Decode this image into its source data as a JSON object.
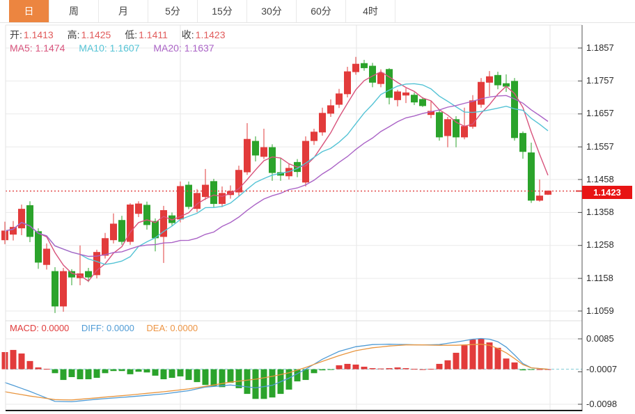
{
  "toolbar": {
    "tabs": [
      {
        "label": "日",
        "active": true
      },
      {
        "label": "周",
        "active": false
      },
      {
        "label": "月",
        "active": false
      },
      {
        "label": "5分",
        "active": false
      },
      {
        "label": "15分",
        "active": false
      },
      {
        "label": "30分",
        "active": false
      },
      {
        "label": "60分",
        "active": false
      },
      {
        "label": "4时",
        "active": false
      }
    ]
  },
  "legend": {
    "ohlc": [
      {
        "label": "开:",
        "value": "1.1413"
      },
      {
        "label": "高:",
        "value": "1.1425"
      },
      {
        "label": "低:",
        "value": "1.1411"
      },
      {
        "label": "收:",
        "value": "1.1423"
      }
    ],
    "ma": [
      {
        "label": "MA5:",
        "value": "1.1474"
      },
      {
        "label": "MA10:",
        "value": "1.1607"
      },
      {
        "label": "MA20:",
        "value": "1.1637"
      }
    ]
  },
  "macd_legend": [
    {
      "label": "MACD:",
      "value": "0.0000"
    },
    {
      "label": "DIFF:",
      "value": "0.0000"
    },
    {
      "label": "DEA:",
      "value": "0.0000"
    }
  ],
  "price_axis": {
    "ticks": [
      "1.1857",
      "1.1757",
      "1.1657",
      "1.1557",
      "1.1458",
      "1.1358",
      "1.1258",
      "1.1158",
      "1.1059"
    ],
    "tag": "1.1423"
  },
  "macd_axis": {
    "ticks": [
      "0.0085",
      "-0.0007",
      "-0.0098"
    ]
  },
  "colors": {
    "up_candle": "#e23b3b",
    "down_candle": "#2ba32b",
    "ma5": "#d8537c",
    "ma10": "#54c3d5",
    "ma20": "#aa63c6",
    "diff_line": "#4f9bd5",
    "dea_line": "#e8953f",
    "active_tab": "#ec8540",
    "price_dotted_line": "#e03b3b",
    "price_tag_bg": "#e81414",
    "price_tag_text": "#ffffff",
    "zero_dashed_line": "#7ecbd6",
    "grid": "#eaeaea",
    "ohlc_label": "#3d3d3d",
    "ohlc_value": "#e15b5b"
  },
  "chart_data": [
    {
      "type": "candlestick",
      "title": "",
      "xlabel": "",
      "ylabel": "",
      "y_ticks": [
        1.1857,
        1.1757,
        1.1657,
        1.1557,
        1.1458,
        1.1358,
        1.1258,
        1.1158,
        1.1059
      ],
      "current_price": 1.1423,
      "ohlc_last": {
        "open": 1.1413,
        "high": 1.1425,
        "low": 1.1411,
        "close": 1.1423
      },
      "ma_values": {
        "MA5": 1.1474,
        "MA10": 1.1607,
        "MA20": 1.1637
      },
      "ma_periods": [
        5,
        10,
        20
      ],
      "up_means": "close>=open (red)",
      "candles": [
        [
          1.1275,
          1.133,
          1.1262,
          1.1302
        ],
        [
          1.1292,
          1.1332,
          1.1273,
          1.1313
        ],
        [
          1.1311,
          1.1382,
          1.1289,
          1.1368
        ],
        [
          1.1379,
          1.1392,
          1.1268,
          1.1285
        ],
        [
          1.13,
          1.131,
          1.1187,
          1.1207
        ],
        [
          1.12,
          1.1264,
          1.1185,
          1.1247
        ],
        [
          1.1179,
          1.1192,
          1.1053,
          1.1074
        ],
        [
          1.1074,
          1.119,
          1.1057,
          1.1179
        ],
        [
          1.1179,
          1.1186,
          1.1137,
          1.1162
        ],
        [
          1.116,
          1.1258,
          1.1137,
          1.1172
        ],
        [
          1.1179,
          1.119,
          1.1147,
          1.1162
        ],
        [
          1.1169,
          1.1245,
          1.1158,
          1.1237
        ],
        [
          1.1228,
          1.1296,
          1.1218,
          1.1279
        ],
        [
          1.1275,
          1.1355,
          1.1264,
          1.1323
        ],
        [
          1.1334,
          1.1348,
          1.126,
          1.127
        ],
        [
          1.127,
          1.1386,
          1.126,
          1.1381
        ],
        [
          1.1355,
          1.1392,
          1.1344,
          1.1384
        ],
        [
          1.138,
          1.1391,
          1.1306,
          1.1321
        ],
        [
          1.1331,
          1.134,
          1.124,
          1.1281
        ],
        [
          1.1285,
          1.1378,
          1.1205,
          1.1364
        ],
        [
          1.1348,
          1.1358,
          1.1318,
          1.1327
        ],
        [
          1.1338,
          1.1452,
          1.1328,
          1.1437
        ],
        [
          1.1441,
          1.1452,
          1.1368,
          1.1376
        ],
        [
          1.137,
          1.1429,
          1.1359,
          1.1416
        ],
        [
          1.1406,
          1.149,
          1.1396,
          1.1441
        ],
        [
          1.1452,
          1.146,
          1.1374,
          1.1385
        ],
        [
          1.1385,
          1.1437,
          1.1374,
          1.1416
        ],
        [
          1.1412,
          1.144,
          1.14,
          1.1422
        ],
        [
          1.142,
          1.15,
          1.1408,
          1.1486
        ],
        [
          1.1481,
          1.1629,
          1.1472,
          1.158
        ],
        [
          1.1574,
          1.1589,
          1.1513,
          1.1532
        ],
        [
          1.1528,
          1.1612,
          1.152,
          1.1555
        ],
        [
          1.1555,
          1.1565,
          1.1454,
          1.1479
        ],
        [
          1.1479,
          1.1523,
          1.1454,
          1.1471
        ],
        [
          1.1469,
          1.1507,
          1.1458,
          1.1492
        ],
        [
          1.151,
          1.152,
          1.1465,
          1.1482
        ],
        [
          1.145,
          1.1589,
          1.1437,
          1.1574
        ],
        [
          1.1576,
          1.1612,
          1.1563,
          1.1602
        ],
        [
          1.1602,
          1.1676,
          1.1591,
          1.1659
        ],
        [
          1.1659,
          1.1701,
          1.1648,
          1.1682
        ],
        [
          1.1686,
          1.1733,
          1.1675,
          1.1718
        ],
        [
          1.1718,
          1.18,
          1.1707,
          1.1785
        ],
        [
          1.1785,
          1.183,
          1.1776,
          1.1808
        ],
        [
          1.181,
          1.1821,
          1.1788,
          1.1797
        ],
        [
          1.1802,
          1.1812,
          1.1738,
          1.1753
        ],
        [
          1.1749,
          1.1792,
          1.1738,
          1.1781
        ],
        [
          1.1792,
          1.1796,
          1.1686,
          1.1707
        ],
        [
          1.17,
          1.173,
          1.168,
          1.1724
        ],
        [
          1.1714,
          1.1735,
          1.169,
          1.1721
        ],
        [
          1.1714,
          1.1722,
          1.1684,
          1.1693
        ],
        [
          1.1701,
          1.1708,
          1.1678,
          1.1682
        ],
        [
          1.1655,
          1.1697,
          1.1644,
          1.1665
        ],
        [
          1.1661,
          1.1668,
          1.1576,
          1.1587
        ],
        [
          1.1591,
          1.1648,
          1.1556,
          1.164
        ],
        [
          1.164,
          1.165,
          1.1556,
          1.1587
        ],
        [
          1.1587,
          1.1676,
          1.158,
          1.1619
        ],
        [
          1.1619,
          1.1714,
          1.1612,
          1.1697
        ],
        [
          1.1686,
          1.1766,
          1.1676,
          1.1753
        ],
        [
          1.1753,
          1.1787,
          1.1711,
          1.177
        ],
        [
          1.1774,
          1.1785,
          1.1732,
          1.1745
        ],
        [
          1.1749,
          1.1777,
          1.1724,
          1.1741
        ],
        [
          1.1756,
          1.1766,
          1.1576,
          1.1585
        ],
        [
          1.1598,
          1.1604,
          1.1521,
          1.1543
        ],
        [
          1.1539,
          1.157,
          1.1387,
          1.1395
        ],
        [
          1.1395,
          1.1458,
          1.1391,
          1.1408
        ],
        [
          1.1413,
          1.1425,
          1.1411,
          1.1423
        ]
      ]
    },
    {
      "type": "macd",
      "y_ticks": [
        0.0085,
        -0.0007,
        -0.0098
      ],
      "values_last": {
        "MACD": 0.0,
        "DIFF": 0.0,
        "DEA": 0.0
      },
      "histogram": [
        0.0048,
        0.0054,
        0.0044,
        0.0023,
        0.0005,
        0.0001,
        -0.0011,
        -0.003,
        -0.0022,
        -0.0028,
        -0.0028,
        -0.0024,
        -0.0011,
        -0.0005,
        -0.0005,
        -0.0014,
        -0.0007,
        -0.0009,
        -0.0018,
        -0.0028,
        -0.0024,
        -0.002,
        -0.003,
        -0.0036,
        -0.0044,
        -0.0048,
        -0.005,
        -0.0038,
        -0.0053,
        -0.0069,
        -0.0083,
        -0.0083,
        -0.0079,
        -0.0069,
        -0.0057,
        -0.0034,
        -0.003,
        -0.0011,
        -0.0003,
        -0.0001,
        0.0011,
        0.0015,
        0.0013,
        0.0007,
        0.0003,
        0.0002,
        0.0003,
        0.0005,
        0.0003,
        0.0001,
        0.0,
        0.0001,
        0.0015,
        0.0025,
        0.0046,
        0.0067,
        0.0083,
        0.0085,
        0.0075,
        0.006,
        0.003,
        0.0019,
        -0.0003,
        -0.0001,
        0.0,
        0.0
      ],
      "diff_points": [
        [
          0,
          -0.0037
        ],
        [
          3,
          -0.0062
        ],
        [
          6,
          -0.009
        ],
        [
          8,
          -0.0091
        ],
        [
          11,
          -0.0084
        ],
        [
          15,
          -0.0077
        ],
        [
          19,
          -0.0069
        ],
        [
          22,
          -0.006
        ],
        [
          24,
          -0.005
        ],
        [
          27,
          -0.0044
        ],
        [
          30,
          -0.0052
        ],
        [
          32,
          -0.0045
        ],
        [
          34,
          -0.0025
        ],
        [
          36,
          0.0
        ],
        [
          38,
          0.0028
        ],
        [
          40,
          0.005
        ],
        [
          42,
          0.0063
        ],
        [
          44,
          0.0069
        ],
        [
          46,
          0.007
        ],
        [
          48,
          0.0069
        ],
        [
          50,
          0.0068
        ],
        [
          52,
          0.0069
        ],
        [
          54,
          0.0076
        ],
        [
          56,
          0.0084
        ],
        [
          57,
          0.0086
        ],
        [
          58,
          0.0084
        ],
        [
          59,
          0.0077
        ],
        [
          60,
          0.0062
        ],
        [
          61,
          0.004
        ],
        [
          62,
          0.0016
        ],
        [
          63,
          0.0004
        ],
        [
          65,
          0.0
        ]
      ],
      "dea_points": [
        [
          0,
          -0.0063
        ],
        [
          3,
          -0.0075
        ],
        [
          6,
          -0.0085
        ],
        [
          8,
          -0.0086
        ],
        [
          11,
          -0.008
        ],
        [
          15,
          -0.0072
        ],
        [
          19,
          -0.0063
        ],
        [
          22,
          -0.0055
        ],
        [
          24,
          -0.0048
        ],
        [
          27,
          -0.0036
        ],
        [
          30,
          -0.0028
        ],
        [
          32,
          -0.002
        ],
        [
          34,
          -0.001
        ],
        [
          36,
          0.0005
        ],
        [
          38,
          0.0022
        ],
        [
          40,
          0.0038
        ],
        [
          42,
          0.0052
        ],
        [
          44,
          0.006
        ],
        [
          46,
          0.0065
        ],
        [
          48,
          0.0068
        ],
        [
          50,
          0.0068
        ],
        [
          52,
          0.0067
        ],
        [
          54,
          0.0067
        ],
        [
          56,
          0.0069
        ],
        [
          57,
          0.007
        ],
        [
          58,
          0.0067
        ],
        [
          59,
          0.0058
        ],
        [
          60,
          0.0046
        ],
        [
          61,
          0.003
        ],
        [
          62,
          0.0013
        ],
        [
          63,
          0.0004
        ],
        [
          65,
          0.0
        ]
      ]
    }
  ]
}
